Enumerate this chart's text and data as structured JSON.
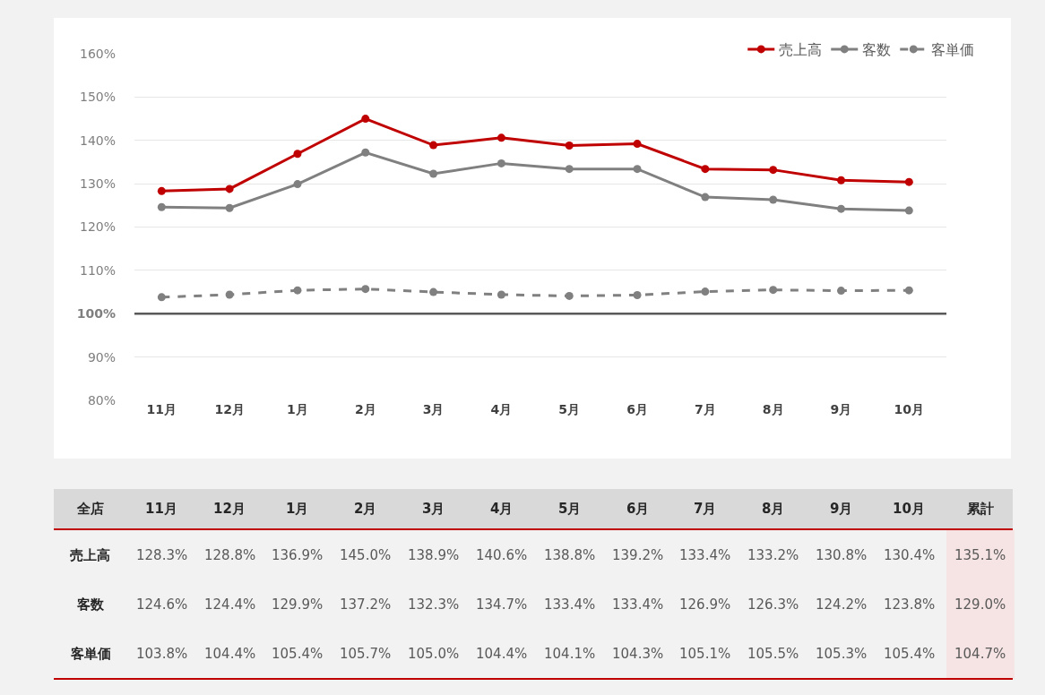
{
  "chart_data": {
    "type": "line",
    "categories": [
      "11月",
      "12月",
      "1月",
      "2月",
      "3月",
      "4月",
      "5月",
      "6月",
      "7月",
      "8月",
      "9月",
      "10月"
    ],
    "series": [
      {
        "name": "売上高",
        "color": "#c00000",
        "values": [
          128.3,
          128.8,
          136.9,
          145.0,
          138.9,
          140.6,
          138.8,
          139.2,
          133.4,
          133.2,
          130.8,
          130.4
        ],
        "value_labels": [
          "128.3%",
          "128.8%",
          "136.9%",
          "145.0%",
          "138.9%",
          "140.6%",
          "138.8%",
          "139.2%",
          "133.4%",
          "133.2%",
          "130.8%",
          "130.4%"
        ]
      },
      {
        "name": "客数",
        "color": "#808080",
        "values": [
          124.6,
          124.4,
          129.9,
          137.2,
          132.3,
          134.7,
          133.4,
          133.4,
          126.9,
          126.3,
          124.2,
          123.8
        ],
        "value_labels": [
          "124.6%",
          "124.4%",
          "129.9%",
          "137.2%",
          "132.3%",
          "134.7%",
          "133.4%",
          "133.4%",
          "126.9%",
          "126.3%",
          "124.2%",
          "123.8%"
        ]
      },
      {
        "name": "客単価",
        "color": "#808080",
        "line_style": "dashed",
        "values": [
          103.8,
          104.4,
          105.4,
          105.7,
          105.0,
          104.4,
          104.1,
          104.3,
          105.1,
          105.5,
          105.3,
          105.4
        ],
        "value_labels": [
          "103.8%",
          "104.4%",
          "105.4%",
          "105.7%",
          "105.0%",
          "104.4%",
          "104.1%",
          "104.3%",
          "105.1%",
          "105.5%",
          "105.3%",
          "105.4%"
        ]
      }
    ],
    "ylim": [
      80,
      160
    ],
    "yticks": [
      {
        "value": 80,
        "label": "80%"
      },
      {
        "value": 90,
        "label": "90%"
      },
      {
        "value": 100,
        "label": "100%"
      },
      {
        "value": 110,
        "label": "110%"
      },
      {
        "value": 120,
        "label": "120%"
      },
      {
        "value": 130,
        "label": "130%"
      },
      {
        "value": 140,
        "label": "140%"
      },
      {
        "value": 150,
        "label": "150%"
      },
      {
        "value": 160,
        "label": "160%"
      }
    ],
    "ref_lines": [
      {
        "axis": "y",
        "value": 100,
        "color": "#595959"
      }
    ],
    "annotations": [
      "全店",
      "累計",
      "135.1%",
      "129.0%",
      "104.7%"
    ],
    "grid": "y",
    "legend": "top right",
    "marker": "circle",
    "line_style": "solid"
  }
}
